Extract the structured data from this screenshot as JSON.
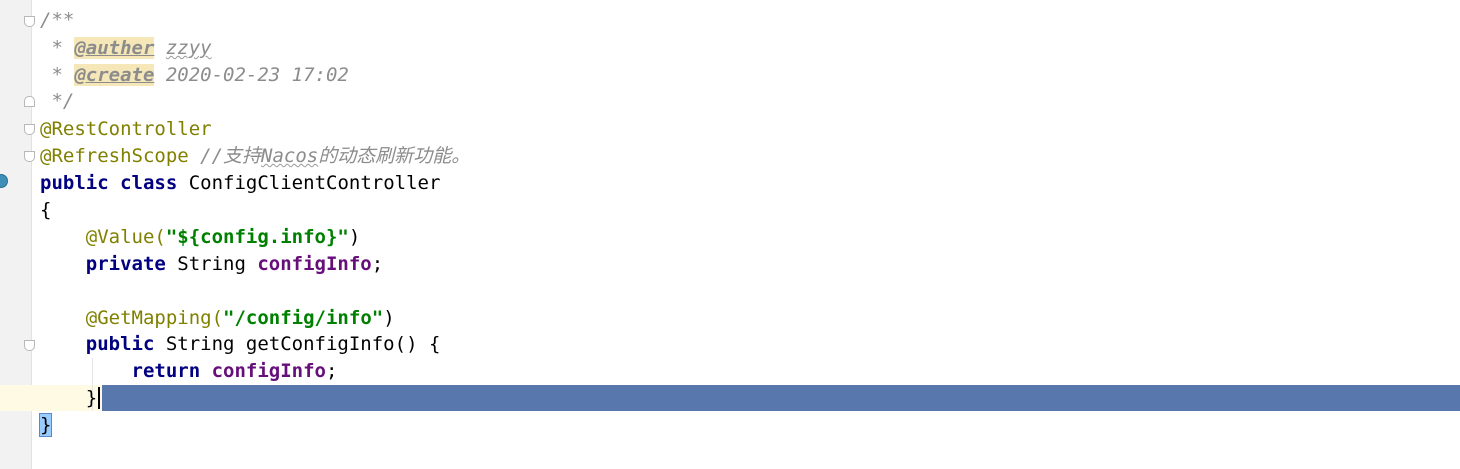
{
  "code": {
    "l1_open": "/**",
    "l2_star": " * ",
    "l2_tag": "@auther",
    "l2_value": "zzyy",
    "l3_star": " * ",
    "l3_tag": "@create",
    "l3_value": " 2020-02-23 17:02",
    "l4_close": " */",
    "l5_annotation": "@RestController",
    "l6_annotation": "@RefreshScope",
    "l6_comment_a": " //支持",
    "l6_comment_b": "Nacos",
    "l6_comment_c": "的动态刷新功能。",
    "l7_public": "public",
    "l7_class": "class",
    "l7_name": " ConfigClientController",
    "l8_brace": "{",
    "l9_indent": "    ",
    "l9_annotation": "@Value(",
    "l9_string": "\"${config.info}\"",
    "l9_close": ")",
    "l10_indent": "    ",
    "l10_private": "private",
    "l10_type": " String ",
    "l10_field": "configInfo",
    "l10_semi": ";",
    "l12_indent": "    ",
    "l12_annotation": "@GetMapping(",
    "l12_string": "\"/config/info\"",
    "l12_close": ")",
    "l13_indent": "    ",
    "l13_public": "public",
    "l13_rest": " String getConfigInfo() {",
    "l14_indent": "        ",
    "l14_return": "return",
    "l14_space": " ",
    "l14_field": "configInfo",
    "l14_semi": ";",
    "l15_indent": "    ",
    "l15_brace": "}",
    "l16_brace": "}"
  },
  "colors": {
    "keyword": "#000080",
    "annotation": "#808000",
    "string": "#008000",
    "field": "#660e7a",
    "comment": "#8c8c8c",
    "selection": "#5877ad"
  }
}
